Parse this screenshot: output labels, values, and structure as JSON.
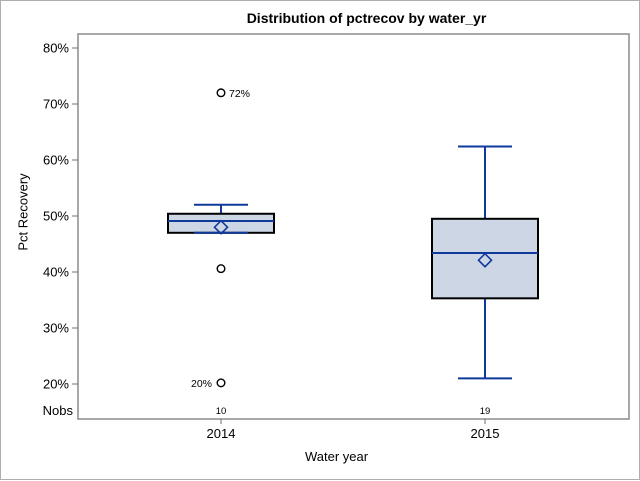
{
  "chart_data": {
    "type": "boxplot",
    "title": "Distribution of pctrecov by water_yr",
    "xlabel": "Water year",
    "ylabel": "Pct Recovery",
    "nobs_label": "Nobs",
    "y_axis": {
      "min": 20,
      "max": 80,
      "unit": "percent",
      "ticks": [
        {
          "value": 80,
          "label": "80%"
        },
        {
          "value": 70,
          "label": "70%"
        },
        {
          "value": 60,
          "label": "60%"
        },
        {
          "value": 50,
          "label": "50%"
        },
        {
          "value": 40,
          "label": "40%"
        },
        {
          "value": 30,
          "label": "30%"
        },
        {
          "value": 20,
          "label": "20%"
        }
      ]
    },
    "categories": [
      "2014",
      "2015"
    ],
    "groups": [
      {
        "category": "2014",
        "nobs": "10",
        "q1": 47.0,
        "median": 49.1,
        "q3": 50.4,
        "mean": 48.0,
        "whisker_low": 47.0,
        "whisker_high": 52.0,
        "outliers": [
          {
            "value": 72.0,
            "label": "72%",
            "label_side": "right"
          },
          {
            "value": 40.6,
            "label": null,
            "label_side": null
          },
          {
            "value": 20.2,
            "label": "20%",
            "label_side": "left"
          }
        ]
      },
      {
        "category": "2015",
        "nobs": "19",
        "q1": 35.3,
        "median": 43.4,
        "q3": 49.5,
        "mean": 42.1,
        "whisker_low": 21.0,
        "whisker_high": 62.4,
        "outliers": []
      }
    ],
    "colors": {
      "box_fill": "#ccd6e5",
      "box_border": "#000000",
      "line": "#0f3a9c",
      "frame": "#8c8c8c",
      "tick": "#6f6f6f",
      "outlier_stroke": "#000000"
    },
    "layout_hints": {
      "grid": false,
      "legend": "none"
    }
  }
}
